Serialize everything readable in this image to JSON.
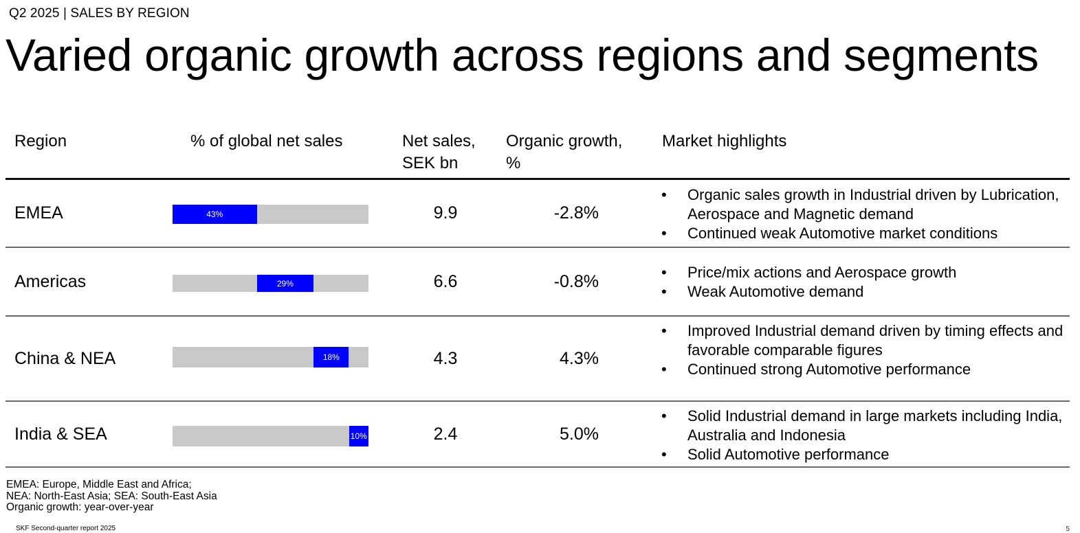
{
  "kicker": "Q2 2025 | SALES BY REGION",
  "title": "Varied organic growth across regions and segments",
  "colors": {
    "bar_fill": "#0000ff",
    "bar_track": "#c9c9c9"
  },
  "table": {
    "headers": {
      "region": "Region",
      "share": "% of global net sales",
      "net_sales_line1": "Net sales,",
      "net_sales_line2": "SEK bn",
      "growth_line1": "Organic growth,",
      "growth_line2": "%",
      "highlights": "Market highlights"
    },
    "rows": [
      {
        "region": "EMEA",
        "share_label": "43%",
        "net_sales": "9.9",
        "organic_growth": "-2.8%",
        "bullet": "•",
        "highlights": [
          "Organic sales growth in Industrial driven by Lubrication, Aerospace and Magnetic demand",
          "Continued weak Automotive market conditions"
        ]
      },
      {
        "region": "Americas",
        "share_label": "29%",
        "net_sales": "6.6",
        "organic_growth": "-0.8%",
        "bullet": "•",
        "highlights": [
          "Price/mix actions and Aerospace growth",
          "Weak Automotive demand"
        ]
      },
      {
        "region": "China & NEA",
        "share_label": "18%",
        "net_sales": "4.3",
        "organic_growth": "4.3%",
        "bullet": "•",
        "highlights": [
          "Improved Industrial demand driven by timing effects and favorable comparable figures",
          "Continued strong Automotive performance"
        ]
      },
      {
        "region": "India & SEA",
        "share_label": "10%",
        "net_sales": "2.4",
        "organic_growth": "5.0%",
        "bullet": "•",
        "highlights": [
          "Solid Industrial demand in large markets including India, Australia and Indonesia",
          "Solid Automotive performance"
        ]
      }
    ]
  },
  "chart_data": {
    "type": "bar",
    "subtype": "stacked-offset-share",
    "title": "% of global net sales",
    "categories": [
      "EMEA",
      "Americas",
      "China & NEA",
      "India & SEA"
    ],
    "values": [
      43,
      29,
      18,
      10
    ],
    "data_labels": [
      "43%",
      "29%",
      "18%",
      "10%"
    ],
    "xlim": [
      0,
      100
    ],
    "unit": "%",
    "grid": false
  },
  "notes": [
    "EMEA: Europe, Middle East and Africa;",
    "NEA: North-East Asia; SEA: South-East Asia",
    "Organic growth: year-over-year"
  ],
  "footer": "SKF Second-quarter report 2025",
  "page_number": "5"
}
